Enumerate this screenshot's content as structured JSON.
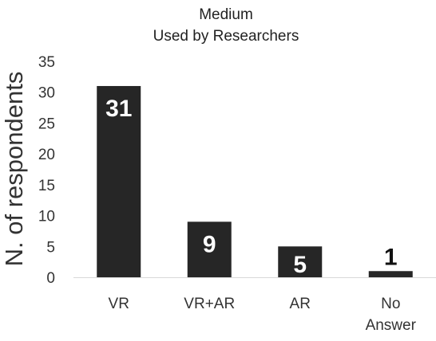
{
  "chart_data": {
    "type": "bar",
    "title": "Medium",
    "subtitle": "Used by Researchers",
    "ylabel": "N. of respondents",
    "xlabel": "",
    "categories": [
      "VR",
      "VR+AR",
      "AR",
      "No Answer"
    ],
    "category_lines": [
      [
        "VR"
      ],
      [
        "VR+AR"
      ],
      [
        "AR"
      ],
      [
        "No",
        "Answer"
      ]
    ],
    "values": [
      31,
      9,
      5,
      1
    ],
    "data_labels": [
      "31",
      "9",
      "5",
      "1"
    ],
    "ylim": [
      0,
      35
    ],
    "yticks": [
      0,
      5,
      10,
      15,
      20,
      25,
      30,
      35
    ],
    "grid": false,
    "legend": "none",
    "colors": {
      "bar": "#262626",
      "label_inside": "#ffffff",
      "label_outside": "#111111",
      "axis": "#d9d9d9"
    }
  }
}
